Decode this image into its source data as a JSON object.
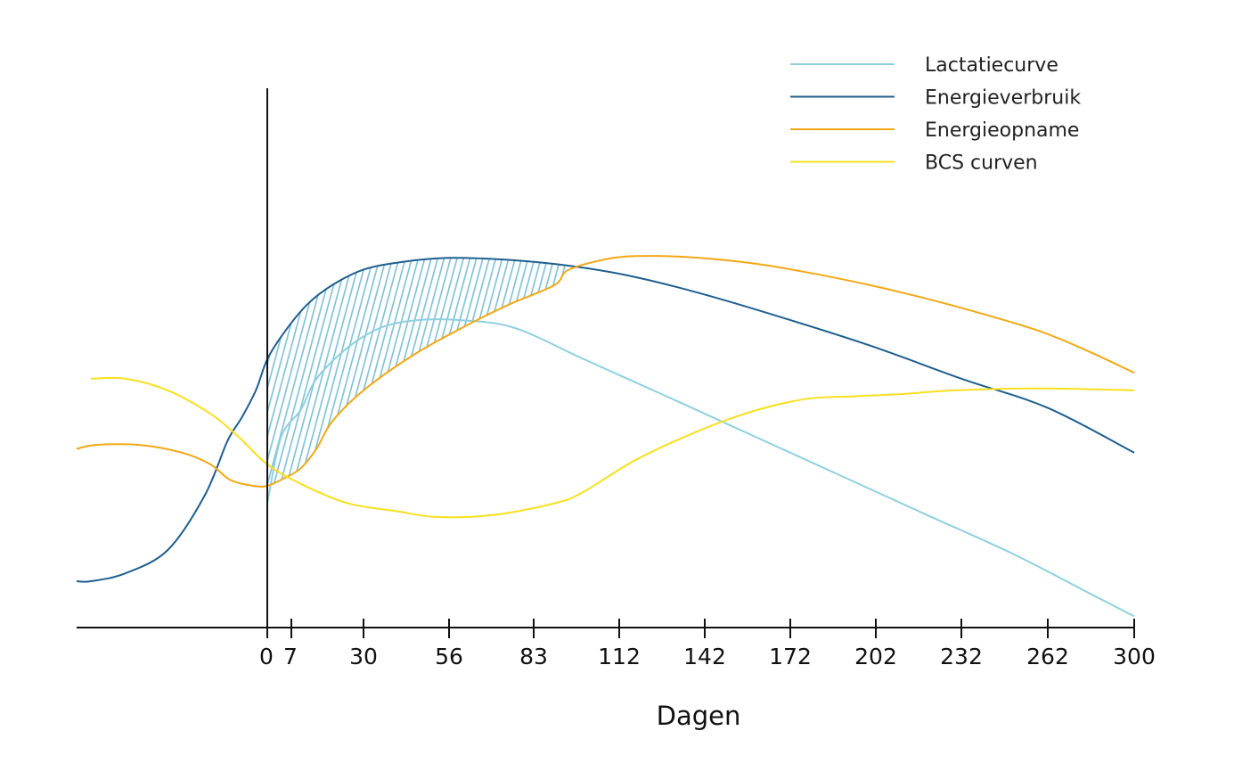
{
  "chart_data": {
    "type": "line",
    "title": "",
    "xlabel": "Dagen",
    "ylabel": "",
    "grid": false,
    "legend_position": "top-right",
    "x_ticks": [
      "0",
      "7",
      "30",
      "56",
      "83",
      "112",
      "142",
      "172",
      "202",
      "232",
      "262",
      "300"
    ],
    "xlim": [
      -67,
      300
    ],
    "ylim": [
      0,
      100
    ],
    "shaded_region": {
      "description": "hatched area between Energieverbruik and Energieopname",
      "x_range": [
        0,
        95
      ],
      "color": "#7bbfd4"
    },
    "series": [
      {
        "name": "Lactatiecurve",
        "color": "#8fd0e0",
        "x": [
          0,
          4,
          10,
          15,
          25,
          35,
          46,
          60,
          77,
          100,
          130,
          160,
          190,
          220,
          250,
          280,
          300
        ],
        "y": [
          28,
          45,
          52,
          60,
          68,
          73,
          75,
          75,
          73,
          65,
          55,
          45,
          35,
          25,
          15,
          5,
          -1
        ]
      },
      {
        "name": "Energieverbruik",
        "color": "#1f5f8f",
        "x": [
          -67,
          -62,
          -50,
          -35,
          -22,
          -14,
          -9,
          -4,
          0,
          5,
          12,
          20,
          30,
          42,
          56,
          75,
          95,
          115,
          140,
          170,
          200,
          232,
          262,
          300
        ],
        "y": [
          8,
          8,
          10,
          16,
          30,
          44,
          50,
          57,
          65,
          72,
          79,
          84,
          88,
          90,
          91,
          90.5,
          89,
          86.5,
          82,
          75.5,
          68.5,
          60,
          52.5,
          41
        ]
      },
      {
        "name": "Energieopname",
        "color": "#f4a814",
        "x": [
          -67,
          -60,
          -45,
          -30,
          -20,
          -13,
          -5,
          0,
          5,
          10,
          15,
          20,
          30,
          45,
          60,
          75,
          90,
          95,
          110,
          125,
          140,
          160,
          180,
          200,
          220,
          240,
          260,
          280,
          300
        ],
        "y": [
          42,
          43,
          43,
          41,
          38,
          34,
          32.5,
          32.5,
          34.5,
          37,
          42,
          49,
          57,
          66,
          73,
          79,
          84,
          88,
          91,
          91.5,
          91,
          89.5,
          87,
          84,
          80.5,
          76.5,
          72,
          67,
          61.5
        ]
      },
      {
        "name": "BCS curven",
        "color": "#f7e01f",
        "x": [
          -62,
          -50,
          -35,
          -20,
          -10,
          0,
          10,
          25,
          40,
          52,
          70,
          90,
          100,
          120,
          150,
          175,
          195,
          210,
          230,
          260,
          300
        ],
        "y": [
          60,
          60,
          57,
          51,
          45,
          38,
          33,
          28,
          26,
          24.5,
          25,
          28,
          31,
          40,
          49.5,
          54.5,
          55.5,
          56,
          57,
          57.5,
          57
        ]
      }
    ]
  }
}
